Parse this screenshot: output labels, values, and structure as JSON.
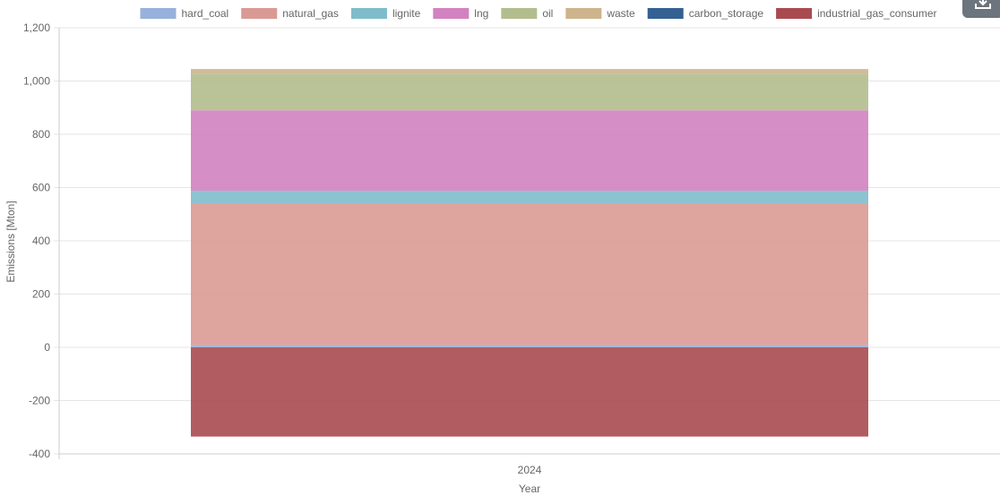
{
  "chart_data": {
    "type": "bar",
    "stacked": true,
    "categories": [
      "2024"
    ],
    "xlabel": "Year",
    "ylabel": "Emissions [Mton]",
    "ylim": [
      -400,
      1200
    ],
    "yticks": [
      -400,
      -200,
      0,
      200,
      400,
      600,
      800,
      1000,
      1200
    ],
    "ytick_labels": [
      "-400",
      "-200",
      "0",
      "200",
      "400",
      "600",
      "800",
      "1,000",
      "1,200"
    ],
    "grid": true,
    "legend_position": "top",
    "series": [
      {
        "name": "hard_coal",
        "values": [
          8
        ],
        "color": "#96b1dc"
      },
      {
        "name": "natural_gas",
        "values": [
          533
        ],
        "color": "#da9a94"
      },
      {
        "name": "lignite",
        "values": [
          47
        ],
        "color": "#7fbccb"
      },
      {
        "name": "lng",
        "values": [
          302
        ],
        "color": "#d282c0"
      },
      {
        "name": "oil",
        "values": [
          138
        ],
        "color": "#b2bd8d"
      },
      {
        "name": "waste",
        "values": [
          17
        ],
        "color": "#cdb48c"
      },
      {
        "name": "carbon_storage",
        "values": [
          0
        ],
        "color": "#346092"
      },
      {
        "name": "industrial_gas_consumer",
        "values": [
          -335
        ],
        "color": "#a94a50"
      }
    ]
  },
  "toolbar": {
    "download_icon": "download-icon"
  }
}
